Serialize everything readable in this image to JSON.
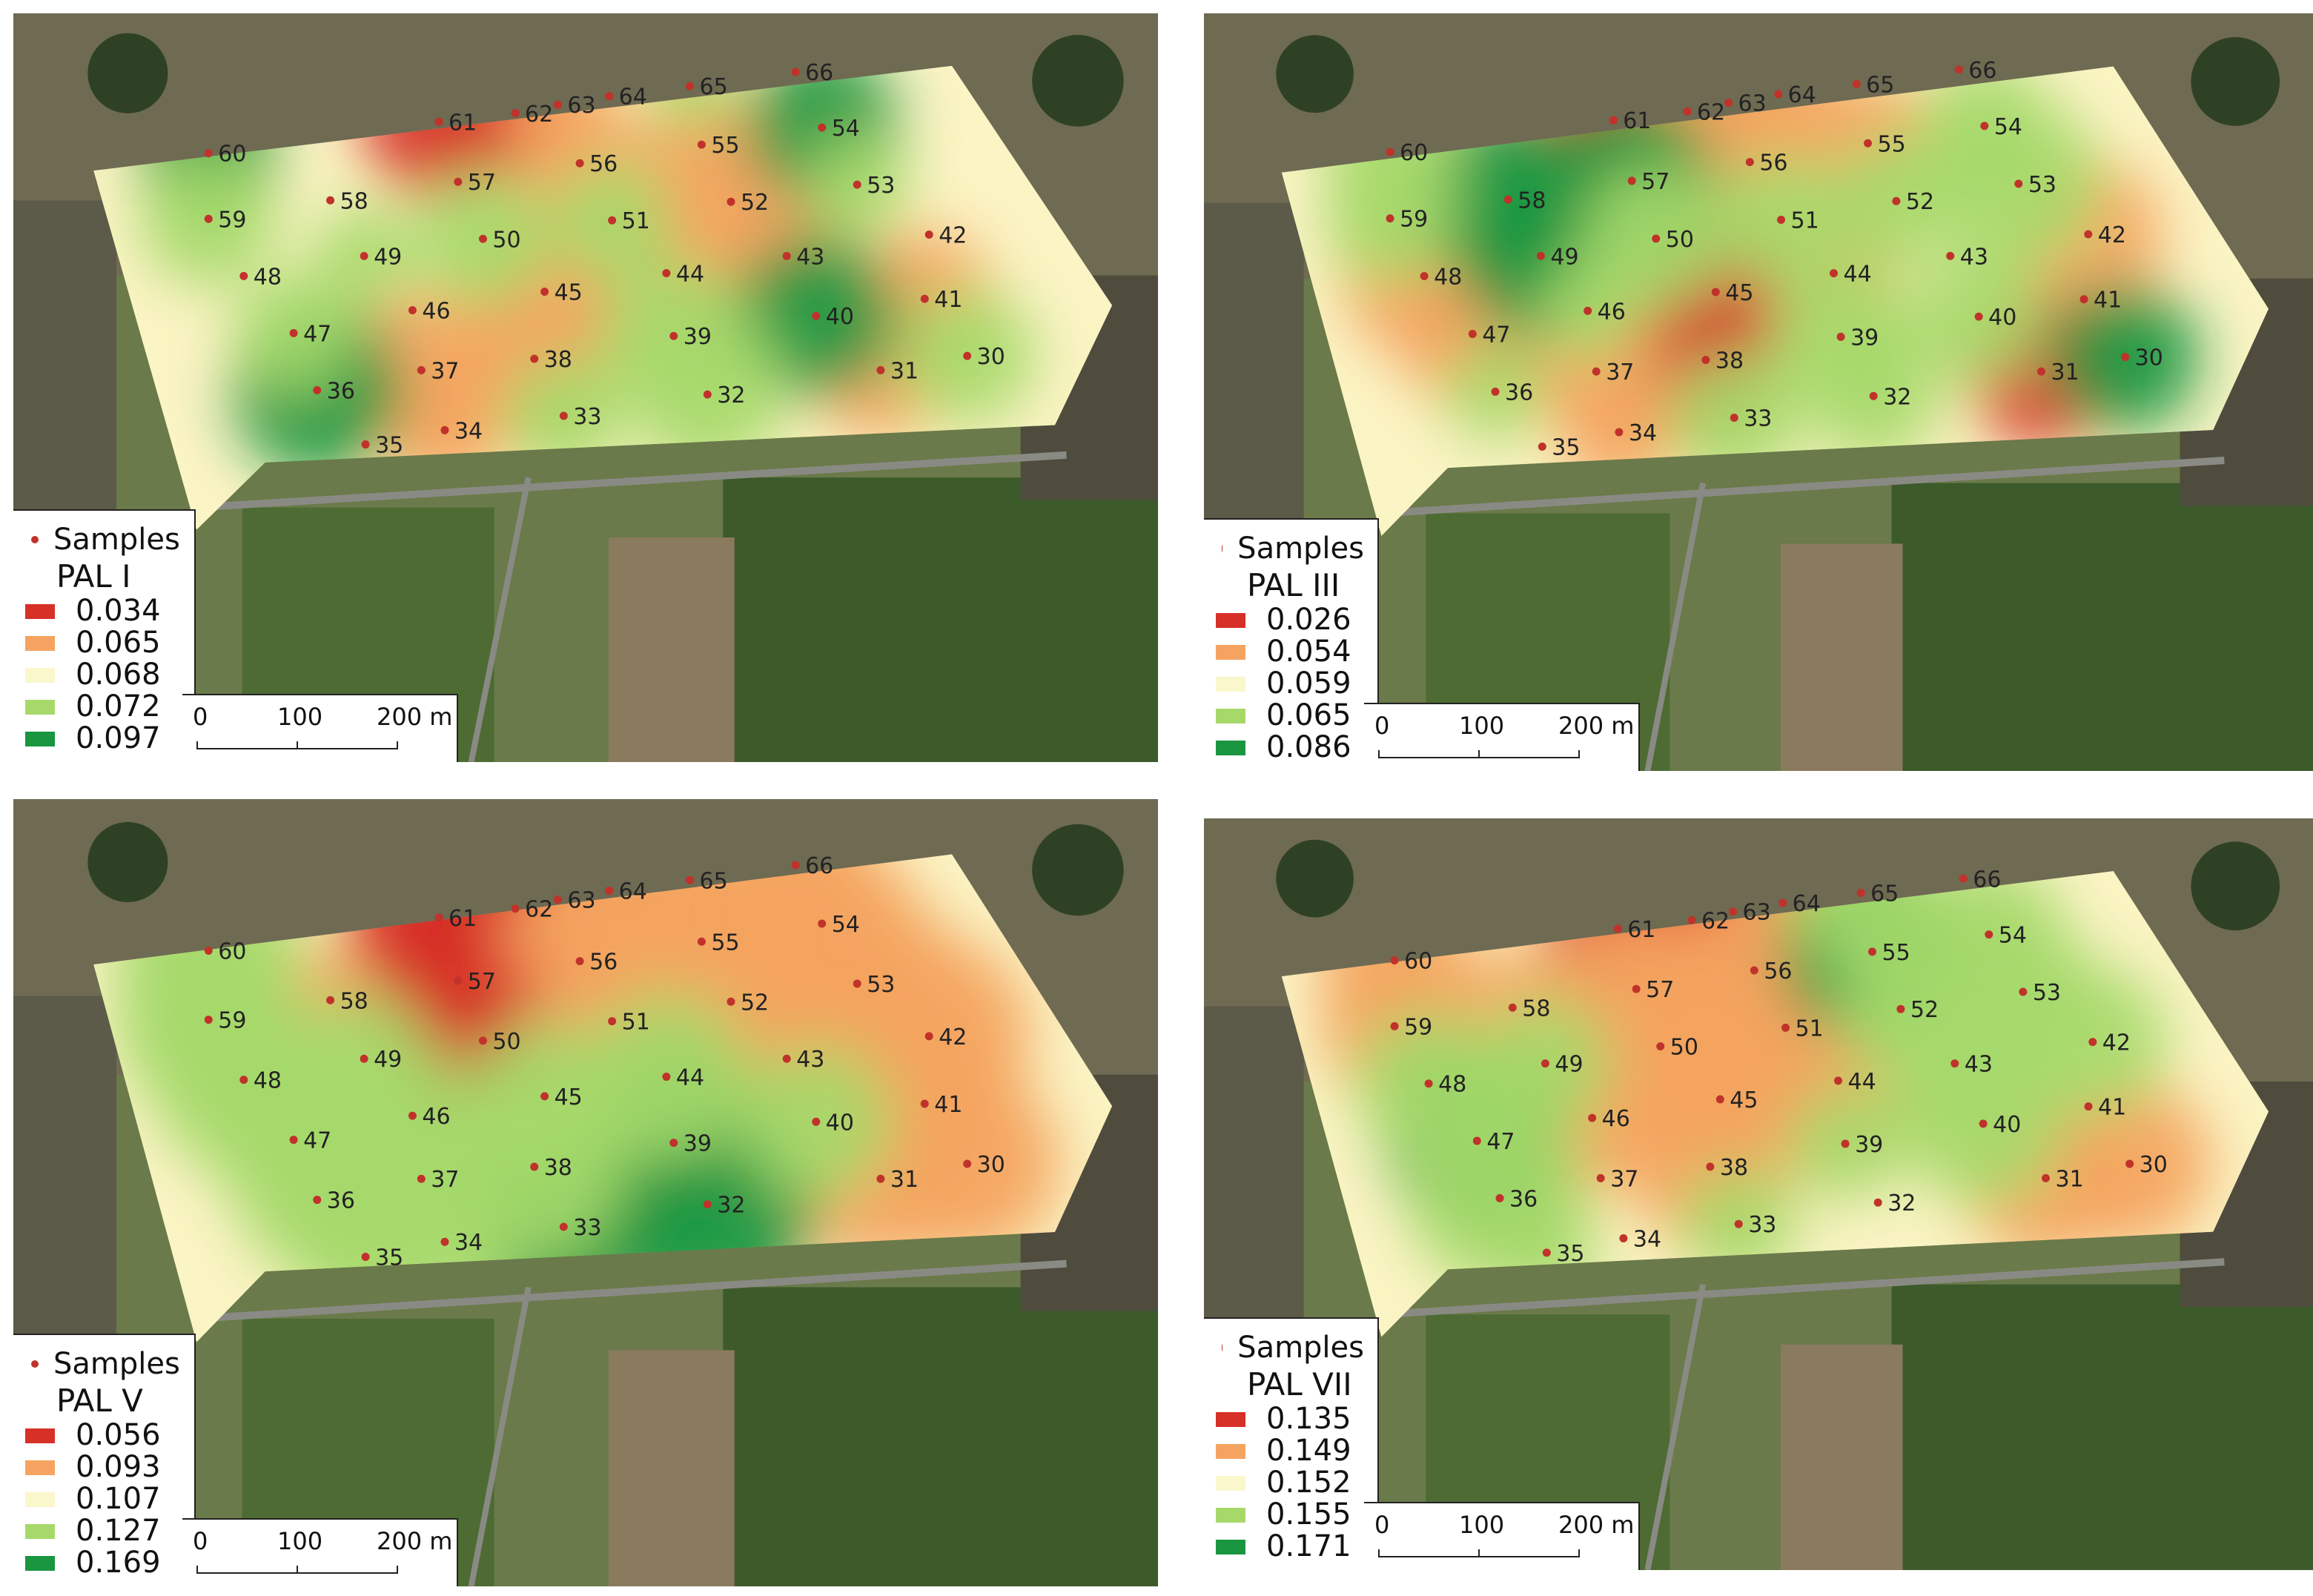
{
  "legend_samples_label": "Samples",
  "scale_labels": [
    "0",
    "100",
    "200 m"
  ],
  "colors": {
    "field_bg": "#fbf4c4",
    "very_low": "#d73027",
    "low": "#f4a460",
    "mid": "#faf7cd",
    "high": "#a6d96a",
    "very_high": "#1a9641",
    "sample_point": "#c0322a",
    "field_grass_dark": "#3d5a2a",
    "field_grass_light": "#6a7a4a",
    "field_soil": "#8a7a5e"
  },
  "maps": [
    {
      "title": "PAL I",
      "classes": [
        "0.034",
        "0.065",
        "0.068",
        "0.072",
        "0.097"
      ],
      "samples": [
        "60",
        "59",
        "48",
        "47",
        "36",
        "35",
        "34",
        "37",
        "46",
        "49",
        "58",
        "57",
        "50",
        "45",
        "38",
        "33",
        "32",
        "39",
        "44",
        "51",
        "56",
        "62",
        "61",
        "63",
        "64",
        "65",
        "66",
        "55",
        "54",
        "53",
        "52",
        "43",
        "40",
        "41",
        "42",
        "31",
        "30"
      ]
    },
    {
      "title": "PAL III",
      "classes": [
        "0.026",
        "0.054",
        "0.059",
        "0.065",
        "0.086"
      ],
      "samples": [
        "60",
        "59",
        "48",
        "47",
        "36",
        "35",
        "34",
        "37",
        "46",
        "49",
        "58",
        "57",
        "50",
        "45",
        "38",
        "33",
        "32",
        "39",
        "44",
        "51",
        "56",
        "62",
        "61",
        "63",
        "64",
        "65",
        "66",
        "55",
        "54",
        "53",
        "52",
        "43",
        "40",
        "41",
        "42",
        "31",
        "30"
      ]
    },
    {
      "title": "PAL V",
      "classes": [
        "0.056",
        "0.093",
        "0.107",
        "0.127",
        "0.169"
      ],
      "samples": [
        "60",
        "59",
        "48",
        "47",
        "36",
        "35",
        "34",
        "37",
        "46",
        "49",
        "58",
        "57",
        "50",
        "45",
        "38",
        "33",
        "32",
        "39",
        "44",
        "51",
        "56",
        "62",
        "61",
        "63",
        "64",
        "65",
        "66",
        "55",
        "54",
        "53",
        "52",
        "43",
        "40",
        "41",
        "42",
        "31",
        "30"
      ]
    },
    {
      "title": "PAL VII",
      "classes": [
        "0.135",
        "0.149",
        "0.152",
        "0.155",
        "0.171"
      ],
      "samples": [
        "60",
        "59",
        "48",
        "47",
        "36",
        "35",
        "34",
        "37",
        "46",
        "49",
        "58",
        "57",
        "50",
        "45",
        "38",
        "33",
        "32",
        "39",
        "44",
        "51",
        "56",
        "62",
        "61",
        "63",
        "64",
        "65",
        "66",
        "55",
        "54",
        "53",
        "52",
        "43",
        "40",
        "41",
        "42",
        "31",
        "30"
      ]
    }
  ]
}
